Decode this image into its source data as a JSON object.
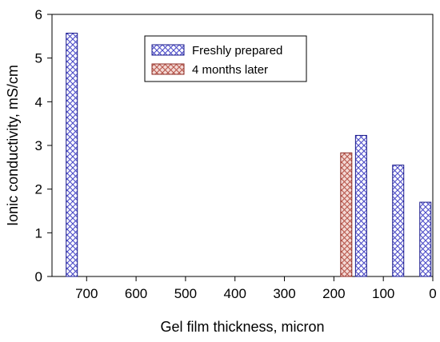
{
  "chart_data": {
    "type": "bar",
    "xlabel": "Gel film thickness, micron",
    "ylabel": "Ionic conductivity, mS/cm",
    "x_axis_reversed": true,
    "xlim": [
      0,
      770
    ],
    "ylim": [
      0,
      6
    ],
    "xticks": [
      700,
      600,
      500,
      400,
      300,
      200,
      100,
      0
    ],
    "yticks": [
      0,
      1,
      2,
      3,
      4,
      5,
      6
    ],
    "grid": false,
    "legend_position": "top-center",
    "series": [
      {
        "name": "Freshly prepared",
        "color": "#6b6bd8",
        "pattern": "crosshatch",
        "points": [
          {
            "x": 730,
            "y": 5.57
          },
          {
            "x": 145,
            "y": 3.23
          },
          {
            "x": 70,
            "y": 2.55
          },
          {
            "x": 15,
            "y": 1.7
          }
        ]
      },
      {
        "name": "4 months later",
        "color": "#d98a80",
        "pattern": "crosshatch",
        "points": [
          {
            "x": 175,
            "y": 2.83
          }
        ]
      }
    ]
  }
}
